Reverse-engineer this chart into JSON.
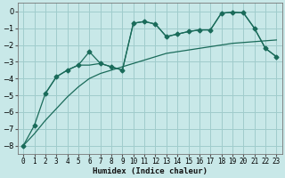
{
  "xlabel": "Humidex (Indice chaleur)",
  "bg_color": "#c8e8e8",
  "grid_color": "#a0cccc",
  "line_color": "#1a6b5a",
  "xlim": [
    -0.5,
    23.5
  ],
  "ylim": [
    -8.5,
    0.5
  ],
  "x_ticks": [
    0,
    1,
    2,
    3,
    4,
    5,
    6,
    7,
    8,
    9,
    10,
    11,
    12,
    13,
    14,
    15,
    16,
    17,
    18,
    19,
    20,
    21,
    22,
    23
  ],
  "y_ticks": [
    0,
    -1,
    -2,
    -3,
    -4,
    -5,
    -6,
    -7,
    -8
  ],
  "trend_x": [
    0,
    1,
    2,
    3,
    4,
    5,
    6,
    7,
    8,
    9,
    10,
    11,
    12,
    13,
    14,
    15,
    16,
    17,
    18,
    19,
    20,
    21,
    22,
    23
  ],
  "trend_y": [
    -8.0,
    -7.3,
    -6.5,
    -5.8,
    -5.1,
    -4.5,
    -4.0,
    -3.7,
    -3.5,
    -3.3,
    -3.1,
    -2.9,
    -2.7,
    -2.5,
    -2.4,
    -2.3,
    -2.2,
    -2.1,
    -2.0,
    -1.9,
    -1.85,
    -1.8,
    -1.75,
    -1.7
  ],
  "line2_x": [
    0,
    1,
    2,
    3,
    4,
    5,
    6,
    7,
    8,
    9,
    10,
    11,
    12,
    13,
    14,
    15,
    16,
    17,
    18,
    19,
    20,
    21,
    22,
    23
  ],
  "line2_y": [
    -8.0,
    -6.8,
    -4.9,
    -3.9,
    -3.5,
    -3.2,
    -2.4,
    -3.1,
    -3.3,
    -3.5,
    -0.7,
    -0.6,
    -0.75,
    -1.5,
    -1.35,
    -1.2,
    -1.1,
    -1.1,
    -0.1,
    -0.05,
    -0.08,
    -1.0,
    -2.2,
    -2.7
  ],
  "line3_x": [
    2,
    3,
    4,
    5,
    6,
    7,
    8,
    9,
    10,
    11,
    12,
    13,
    14,
    15,
    16,
    17,
    18,
    19,
    20,
    21,
    22,
    23
  ],
  "line3_y": [
    -4.9,
    -3.9,
    -3.5,
    -3.2,
    -3.2,
    -3.1,
    -3.3,
    -3.5,
    -0.7,
    -0.6,
    -0.75,
    -1.5,
    -1.35,
    -1.2,
    -1.1,
    -1.1,
    -0.1,
    -0.05,
    -0.08,
    -1.0,
    -2.2,
    -2.7
  ]
}
